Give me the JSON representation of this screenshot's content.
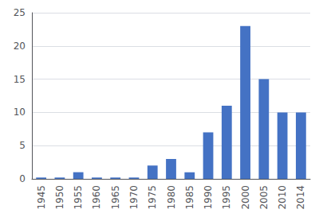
{
  "chart_data": {
    "type": "bar",
    "categories": [
      "1945",
      "1950",
      "1955",
      "1960",
      "1965",
      "1970",
      "1975",
      "1980",
      "1985",
      "1990",
      "1995",
      "2000",
      "2005",
      "2010",
      "2014"
    ],
    "values": [
      0.2,
      0.2,
      1,
      0.2,
      0.2,
      0.2,
      2,
      3,
      1,
      7,
      11,
      23,
      15,
      10,
      10
    ],
    "color": "#4472C4",
    "ylim": [
      0,
      25
    ],
    "yticks": [
      0,
      5,
      10,
      15,
      20,
      25
    ],
    "grid": true
  }
}
